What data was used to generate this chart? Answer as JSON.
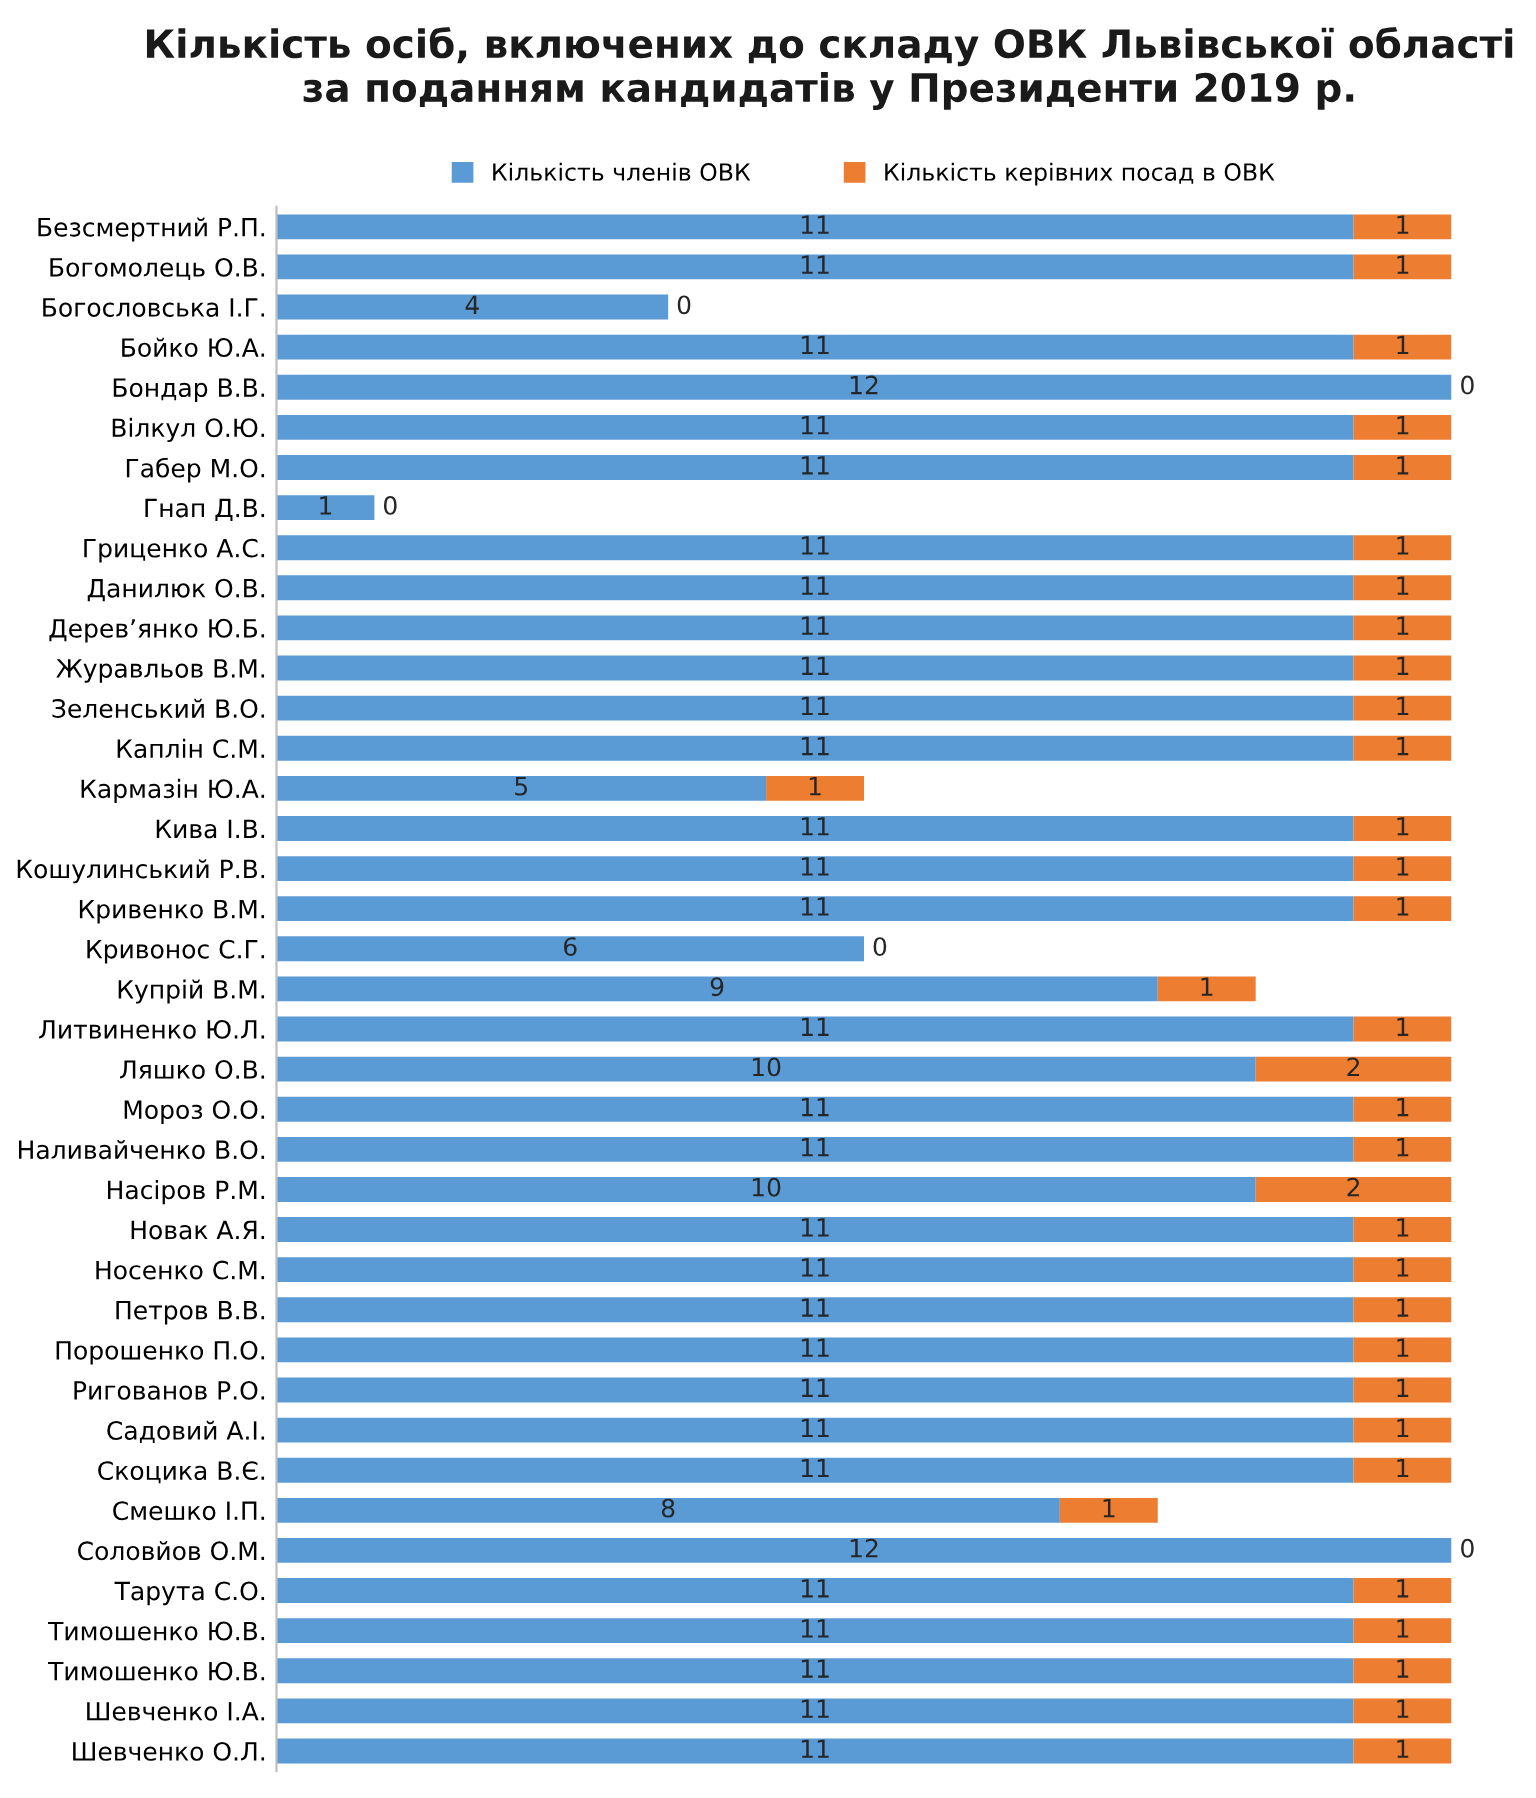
{
  "chart_data": {
    "type": "bar",
    "orientation": "horizontal",
    "stacked": true,
    "title": "Кількість осіб, включених до складу ОВК Львівської області за поданням кандидатів у Президенти 2019 р.",
    "categories": [
      "Безсмертний Р.П.",
      "Богомолець О.В.",
      "Богословська І.Г.",
      "Бойко Ю.А.",
      "Бондар В.В.",
      "Вілкул О.Ю.",
      "Габер М.О.",
      "Гнап Д.В.",
      "Гриценко А.С.",
      "Данилюк О.В.",
      "Дерев’янко Ю.Б.",
      "Журавльов В.М.",
      "Зеленський В.О.",
      "Каплін С.М.",
      "Кармазін Ю.А.",
      "Кива І.В.",
      "Кошулинський Р.В.",
      "Кривенко В.М.",
      "Кривонос С.Г.",
      "Купрій В.М.",
      "Литвиненко Ю.Л.",
      "Ляшко О.В.",
      "Мороз О.О.",
      "Наливайченко В.О.",
      "Насіров Р.М.",
      "Новак А.Я.",
      "Носенко С.М.",
      "Петров В.В.",
      "Порошенко П.О.",
      "Ригованов Р.О.",
      "Садовий А.І.",
      "Скоцика В.Є.",
      "Смешко І.П.",
      "Соловйов О.М.",
      "Тарута С.О.",
      "Тимошенко Ю.В.",
      "Тимошенко Ю.В.",
      "Шевченко І.А.",
      "Шевченко О.Л."
    ],
    "series": [
      {
        "name": "Кількість членів ОВК",
        "color": "#5b9bd5",
        "values": [
          11,
          11,
          4,
          11,
          12,
          11,
          11,
          1,
          11,
          11,
          11,
          11,
          11,
          11,
          5,
          11,
          11,
          11,
          6,
          9,
          11,
          10,
          11,
          11,
          10,
          11,
          11,
          11,
          11,
          11,
          11,
          11,
          8,
          12,
          11,
          11,
          11,
          11,
          11
        ]
      },
      {
        "name": "Кількість керівних посад в ОВК",
        "color": "#ed7d31",
        "values": [
          1,
          1,
          0,
          1,
          0,
          1,
          1,
          0,
          1,
          1,
          1,
          1,
          1,
          1,
          1,
          1,
          1,
          1,
          0,
          1,
          1,
          2,
          1,
          1,
          2,
          1,
          1,
          1,
          1,
          1,
          1,
          1,
          1,
          0,
          1,
          1,
          1,
          1,
          1
        ]
      }
    ],
    "tick_labels": "y",
    "data_labels": true,
    "legend": "top",
    "grid": false
  }
}
